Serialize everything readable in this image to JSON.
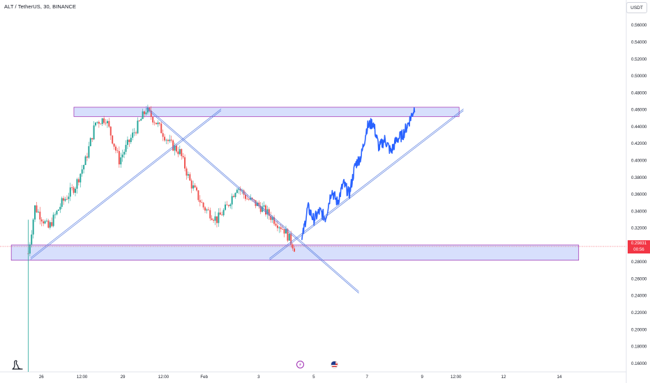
{
  "header": {
    "title": "ALT / TetherUS, 30, BINANCE",
    "currency": "USDT"
  },
  "price_label": {
    "price": "0.29831",
    "countdown": "00:56"
  },
  "colors": {
    "up": "#26a69a",
    "down": "#ef5350",
    "projection": "#2962ff",
    "zone_fill": "#c9d4fb",
    "zone_border": "#9c27b0",
    "trendline": "#5b7fe0",
    "current_price_line": "#f23645",
    "axis_text": "#131722"
  },
  "icons": [
    "tradingview-logo-icon",
    "lightning-event-icon",
    "us-flag-event-icon"
  ],
  "chart_data": {
    "type": "candlestick",
    "title": "ALT / TetherUS, 30, BINANCE",
    "ylim": [
      0.15,
      0.575
    ],
    "y_ticks": [
      "0.56000",
      "0.54000",
      "0.52000",
      "0.50000",
      "0.48000",
      "0.46000",
      "0.44000",
      "0.42000",
      "0.40000",
      "0.38000",
      "0.36000",
      "0.34000",
      "0.32000",
      "0.30000",
      "0.28000",
      "0.26000",
      "0.24000",
      "0.22000",
      "0.20000",
      "0.18000",
      "0.16000"
    ],
    "x_ticks": [
      "26",
      "12:00",
      "29",
      "12:00",
      "Feb",
      "3",
      "5",
      "7",
      "9",
      "12:00",
      "12",
      "14"
    ],
    "current_price": 0.29831,
    "price_path_anchors": [
      [
        0,
        0.29
      ],
      [
        4,
        0.345
      ],
      [
        12,
        0.32
      ],
      [
        20,
        0.35
      ],
      [
        28,
        0.37
      ],
      [
        34,
        0.4
      ],
      [
        40,
        0.445
      ],
      [
        46,
        0.45
      ],
      [
        54,
        0.4
      ],
      [
        62,
        0.43
      ],
      [
        70,
        0.46
      ],
      [
        76,
        0.445
      ],
      [
        84,
        0.42
      ],
      [
        90,
        0.41
      ],
      [
        96,
        0.375
      ],
      [
        104,
        0.345
      ],
      [
        112,
        0.33
      ],
      [
        118,
        0.345
      ],
      [
        124,
        0.37
      ],
      [
        130,
        0.355
      ],
      [
        138,
        0.345
      ],
      [
        146,
        0.33
      ],
      [
        152,
        0.318
      ],
      [
        158,
        0.297
      ]
    ],
    "projection_path": [
      [
        0.305,
        0.345,
        0.33,
        0.34,
        0.332,
        0.365,
        0.35,
        0.373,
        0.36,
        0.395,
        0.405,
        0.44,
        0.445,
        0.415,
        0.425,
        0.41,
        0.425,
        0.43,
        0.445,
        0.462
      ]
    ],
    "zones": [
      {
        "name": "resistance",
        "from": 0.452,
        "to": 0.463
      },
      {
        "name": "support",
        "from": 0.282,
        "to": 0.3
      }
    ],
    "trendlines": [
      {
        "name": "ascending-channel-left",
        "from": [
          0.29,
          0.284
        ],
        "to": [
          0.36,
          0.46
        ]
      },
      {
        "name": "descending-line",
        "from": [
          0.46,
          0.463
        ],
        "to": [
          0.96,
          0.244
        ]
      },
      {
        "name": "ascending-line-right",
        "from": [
          0.82,
          0.283
        ],
        "to": [
          1.0,
          0.46
        ]
      }
    ],
    "grid": false,
    "legend": "none"
  }
}
